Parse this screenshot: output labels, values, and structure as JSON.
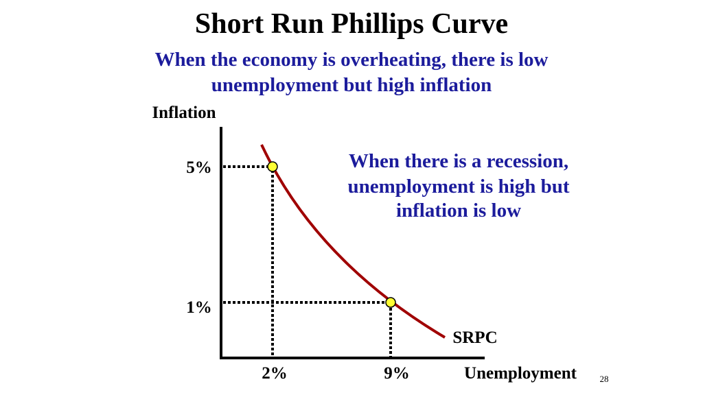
{
  "title": "Short Run Phillips Curve",
  "subtitle": [
    "When the economy is overheating, there is low",
    "unemployment but high inflation"
  ],
  "annotation": [
    "When there is a recession,",
    "unemployment is high but",
    "inflation is low"
  ],
  "y_axis_label": "Inflation",
  "x_axis_label": "Unemployment",
  "curve_label": "SRPC",
  "points": [
    {
      "x_label": "2%",
      "y_label": "5%"
    },
    {
      "x_label": "9%",
      "y_label": "1%"
    }
  ],
  "page_number": "28"
}
